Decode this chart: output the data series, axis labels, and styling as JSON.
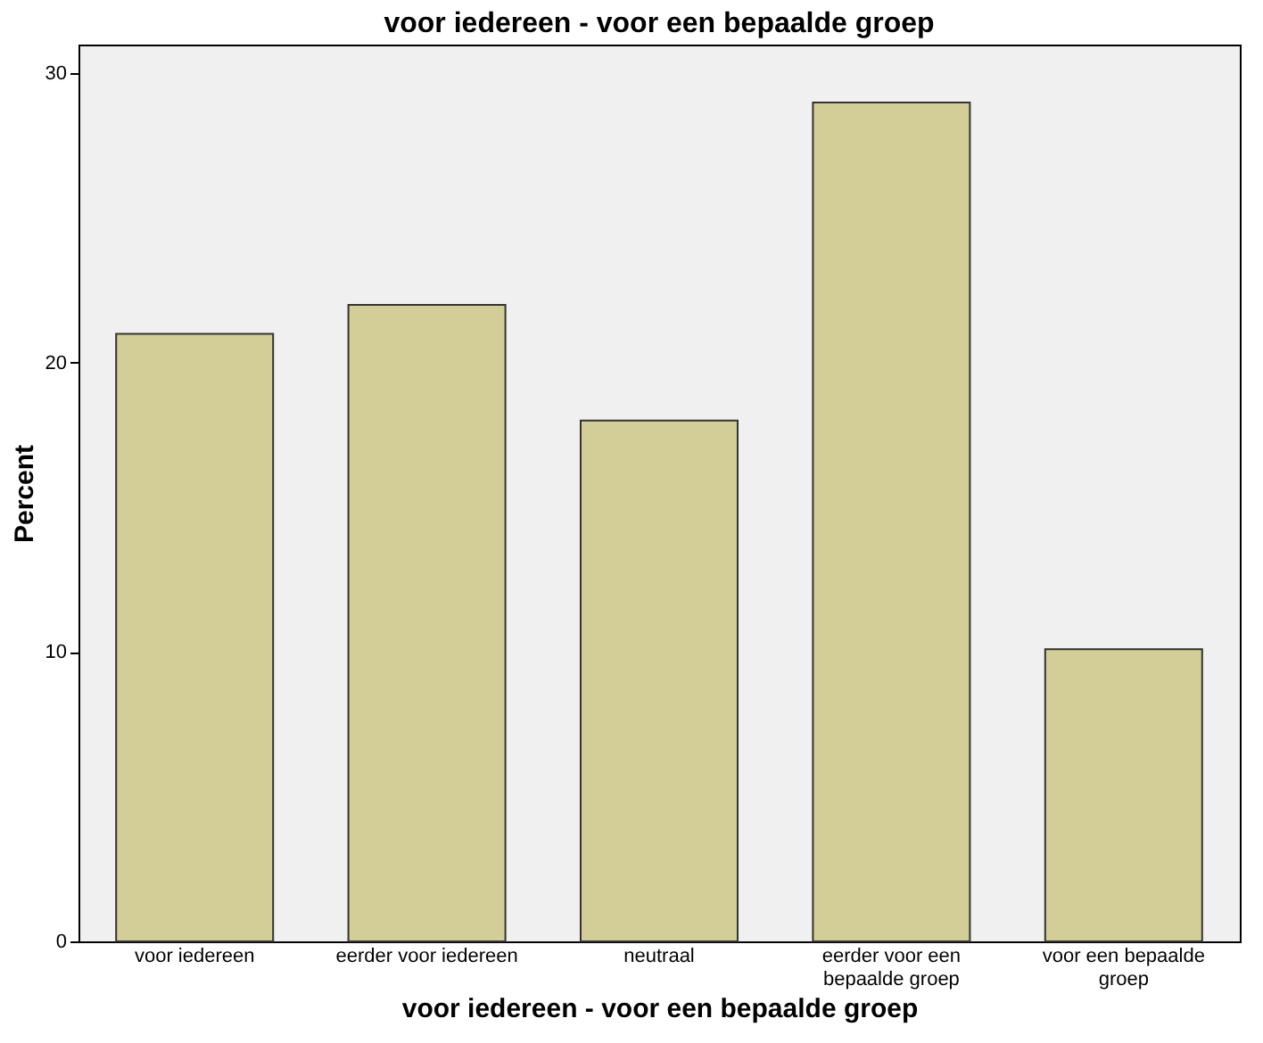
{
  "chart_data": {
    "type": "bar",
    "title": "voor iedereen - voor een bepaalde groep",
    "xlabel": "voor iedereen - voor een bepaalde groep",
    "ylabel": "Percent",
    "categories": [
      "voor iedereen",
      "eerder voor iedereen",
      "neutraal",
      "eerder voor een bepaalde groep",
      "voor een bepaalde groep"
    ],
    "values": [
      21,
      22,
      18,
      29,
      10.1
    ],
    "color": "#d3ce97",
    "ylim": [
      0,
      31
    ],
    "yticks": [
      0,
      10,
      20,
      30
    ],
    "grid": false
  }
}
